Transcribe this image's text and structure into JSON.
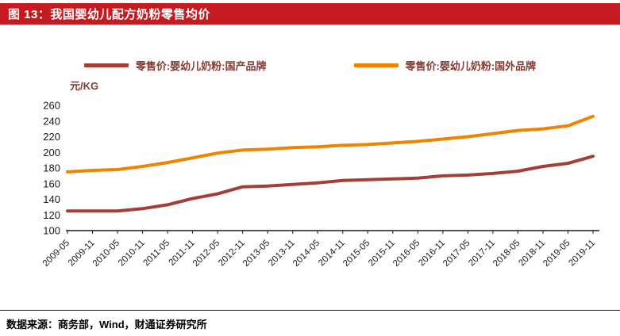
{
  "header": {
    "title": "图 13：我国婴幼儿配方奶粉零售均价"
  },
  "chart_data": {
    "type": "line",
    "title": "我国婴幼儿配方奶粉零售均价",
    "unit_label": "元/KG",
    "xlabel": "",
    "ylabel": "元/KG",
    "ylim": [
      100,
      260
    ],
    "ytick_step": 20,
    "grid": false,
    "legend_position": "top",
    "categories": [
      "2009-05",
      "2009-11",
      "2010-05",
      "2010-11",
      "2011-05",
      "2011-11",
      "2012-05",
      "2012-11",
      "2013-05",
      "2013-11",
      "2014-05",
      "2014-11",
      "2015-05",
      "2015-11",
      "2016-05",
      "2016-11",
      "2017-05",
      "2017-11",
      "2018-05",
      "2018-11",
      "2019-05",
      "2019-11"
    ],
    "series": [
      {
        "name": "零售价:婴幼儿奶粉:国产品牌",
        "color": "#a43e36",
        "values": [
          125,
          125,
          125,
          128,
          133,
          141,
          147,
          156,
          157,
          159,
          161,
          164,
          165,
          166,
          167,
          170,
          171,
          173,
          176,
          182,
          186,
          195
        ]
      },
      {
        "name": "零售价:婴幼儿奶粉:国外品牌",
        "color": "#f08300",
        "values": [
          175,
          177,
          178,
          182,
          187,
          193,
          199,
          203,
          204,
          206,
          207,
          209,
          210,
          212,
          214,
          217,
          220,
          224,
          228,
          230,
          234,
          246
        ]
      }
    ]
  },
  "footer": {
    "source": "数据来源：商务部，Wind，财通证券研究所"
  },
  "colors": {
    "header_bg": "#c51a20",
    "header_text": "#ffffff",
    "legend_text": "#823b32",
    "axis": "#1a1a1a",
    "domestic_line": "#a43e36",
    "foreign_line": "#f08300"
  }
}
